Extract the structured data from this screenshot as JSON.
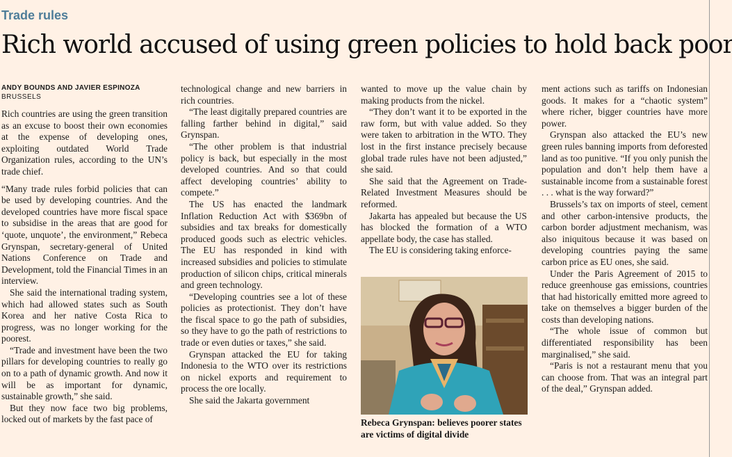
{
  "section": "Trade rules",
  "headline": "Rich world accused of using green policies to hold back poor",
  "byline": {
    "authors": "ANDY BOUNDS AND JAVIER ESPINOZA",
    "location": "BRUSSELS"
  },
  "columns": [
    [
      "Rich countries are using the green transition as an excuse to boost their own economies at the expense of developing ones, exploiting outdated World Trade Organization rules, according to the UN’s trade chief.",
      "“Many trade rules forbid policies that can be used by developing countries. And the developed countries have more fiscal space to subsidise in the areas that are good for ‘quote, unquote’, the environment,” Rebeca Grynspan, secretary-general of United Nations Conference on Trade and Development, told the Financial Times in an interview.",
      "She said the international trading system, which had allowed states such as South Korea and her native Costa Rica to progress, was no longer working for the poorest.",
      "“Trade and investment have been the two pillars for developing countries to really go on to a path of dynamic growth. And now it will be as important for dynamic, sustainable growth,” she said.",
      "But they now face two big problems, locked out of markets by the fast pace of"
    ],
    [
      "technological change and new barriers in rich countries.",
      "“The least digitally prepared countries are falling farther behind in digital,” said Grynspan.",
      "“The other problem is that industrial policy is back, but especially in the most developed countries. And so that could affect developing countries’ ability to compete.”",
      "The US has enacted the landmark Inflation Reduction Act with $369bn of subsidies and tax breaks for domestically produced goods such as electric vehicles. The EU has responded in kind with increased subsidies and policies to stimulate production of silicon chips, critical minerals and green technology.",
      "“Developing countries see a lot of these policies as protectionist. They don’t have the fiscal space to go the path of subsidies, so they have to go the path of restrictions to trade or even duties or taxes,” she said.",
      "Grynspan attacked the EU for taking Indonesia to the WTO over its restrictions on nickel exports and requirement to process the ore locally.",
      "She said the Jakarta government"
    ],
    [
      "wanted to move up the value chain by making products from the nickel.",
      "“They don’t want it to be exported in the raw form, but with value added. So they were taken to arbitration in the WTO. They lost in the first instance precisely because global trade rules have not been adjusted,” she said.",
      "She said that the Agreement on Trade-Related Investment Measures should be reformed.",
      "Jakarta has appealed but because the US has blocked the formation of a WTO appellate body, the case has stalled.",
      "The EU is considering taking enforce-"
    ],
    [
      "ment actions such as tariffs on Indonesian goods. It makes for a “chaotic system” where richer, bigger countries have more power.",
      "Grynspan also attacked the EU’s new green rules banning imports from deforested land as too punitive. “If you only punish the population and don’t help them have a sustainable income from a sustainable forest . . . what is the way forward?”",
      "Brussels’s tax on imports of steel, cement and other carbon-intensive products, the carbon border adjustment mechanism, was also iniquitous because it was based on developing countries paying the same carbon price as EU ones, she said.",
      "Under the Paris Agreement of 2015 to reduce greenhouse gas emissions, countries that had historically emitted more agreed to take on themselves a bigger burden of the costs than developing nations.",
      "“The whole issue of common but differentiated responsibility has been marginalised,” she said.",
      "“Paris is not a restaurant menu that you can choose from. That was an integral part of the deal,” Grynspan added."
    ]
  ],
  "photo_caption": "Rebeca Grynspan: believes poorer states are victims of digital divide"
}
